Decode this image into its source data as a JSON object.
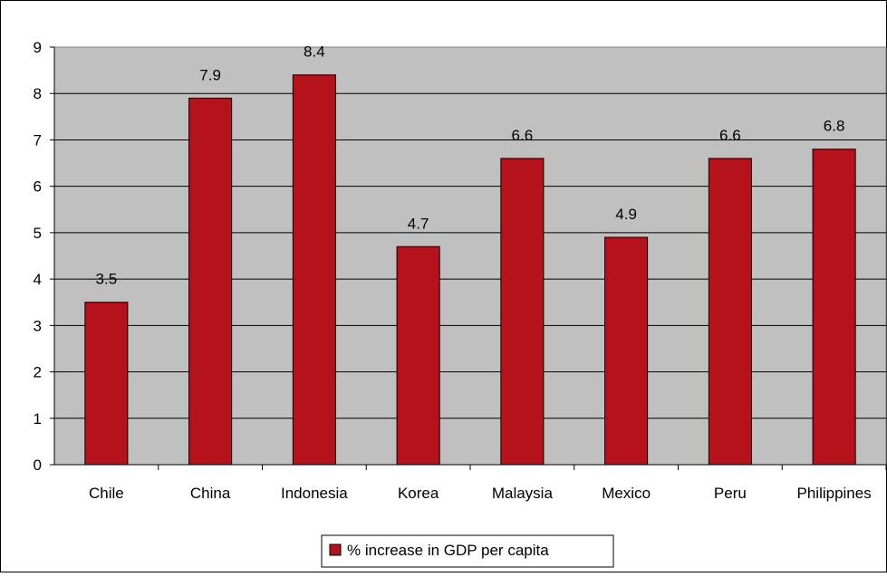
{
  "chart_data": {
    "type": "bar",
    "categories": [
      "Chile",
      "China",
      "Indonesia",
      "Korea",
      "Malaysia",
      "Mexico",
      "Peru",
      "Philippines"
    ],
    "series": [
      {
        "name": "% increase in GDP per capita",
        "values": [
          3.5,
          7.9,
          8.4,
          4.7,
          6.6,
          4.9,
          6.6,
          6.8
        ],
        "color": "#b5121b"
      }
    ],
    "yticks": [
      "0",
      "1",
      "2",
      "3",
      "4",
      "5",
      "6",
      "7",
      "8",
      "9"
    ],
    "data_labels": [
      "3.5",
      "7.9",
      "8.4",
      "4.7",
      "6.6",
      "4.9",
      "6.6",
      "6.8"
    ],
    "ylim": [
      0,
      9
    ],
    "title": "",
    "xlabel": "",
    "ylabel": "",
    "grid": true,
    "legend": "bottom-center",
    "plot_background": "#c0c0c0",
    "gridline_color": "#000000"
  }
}
